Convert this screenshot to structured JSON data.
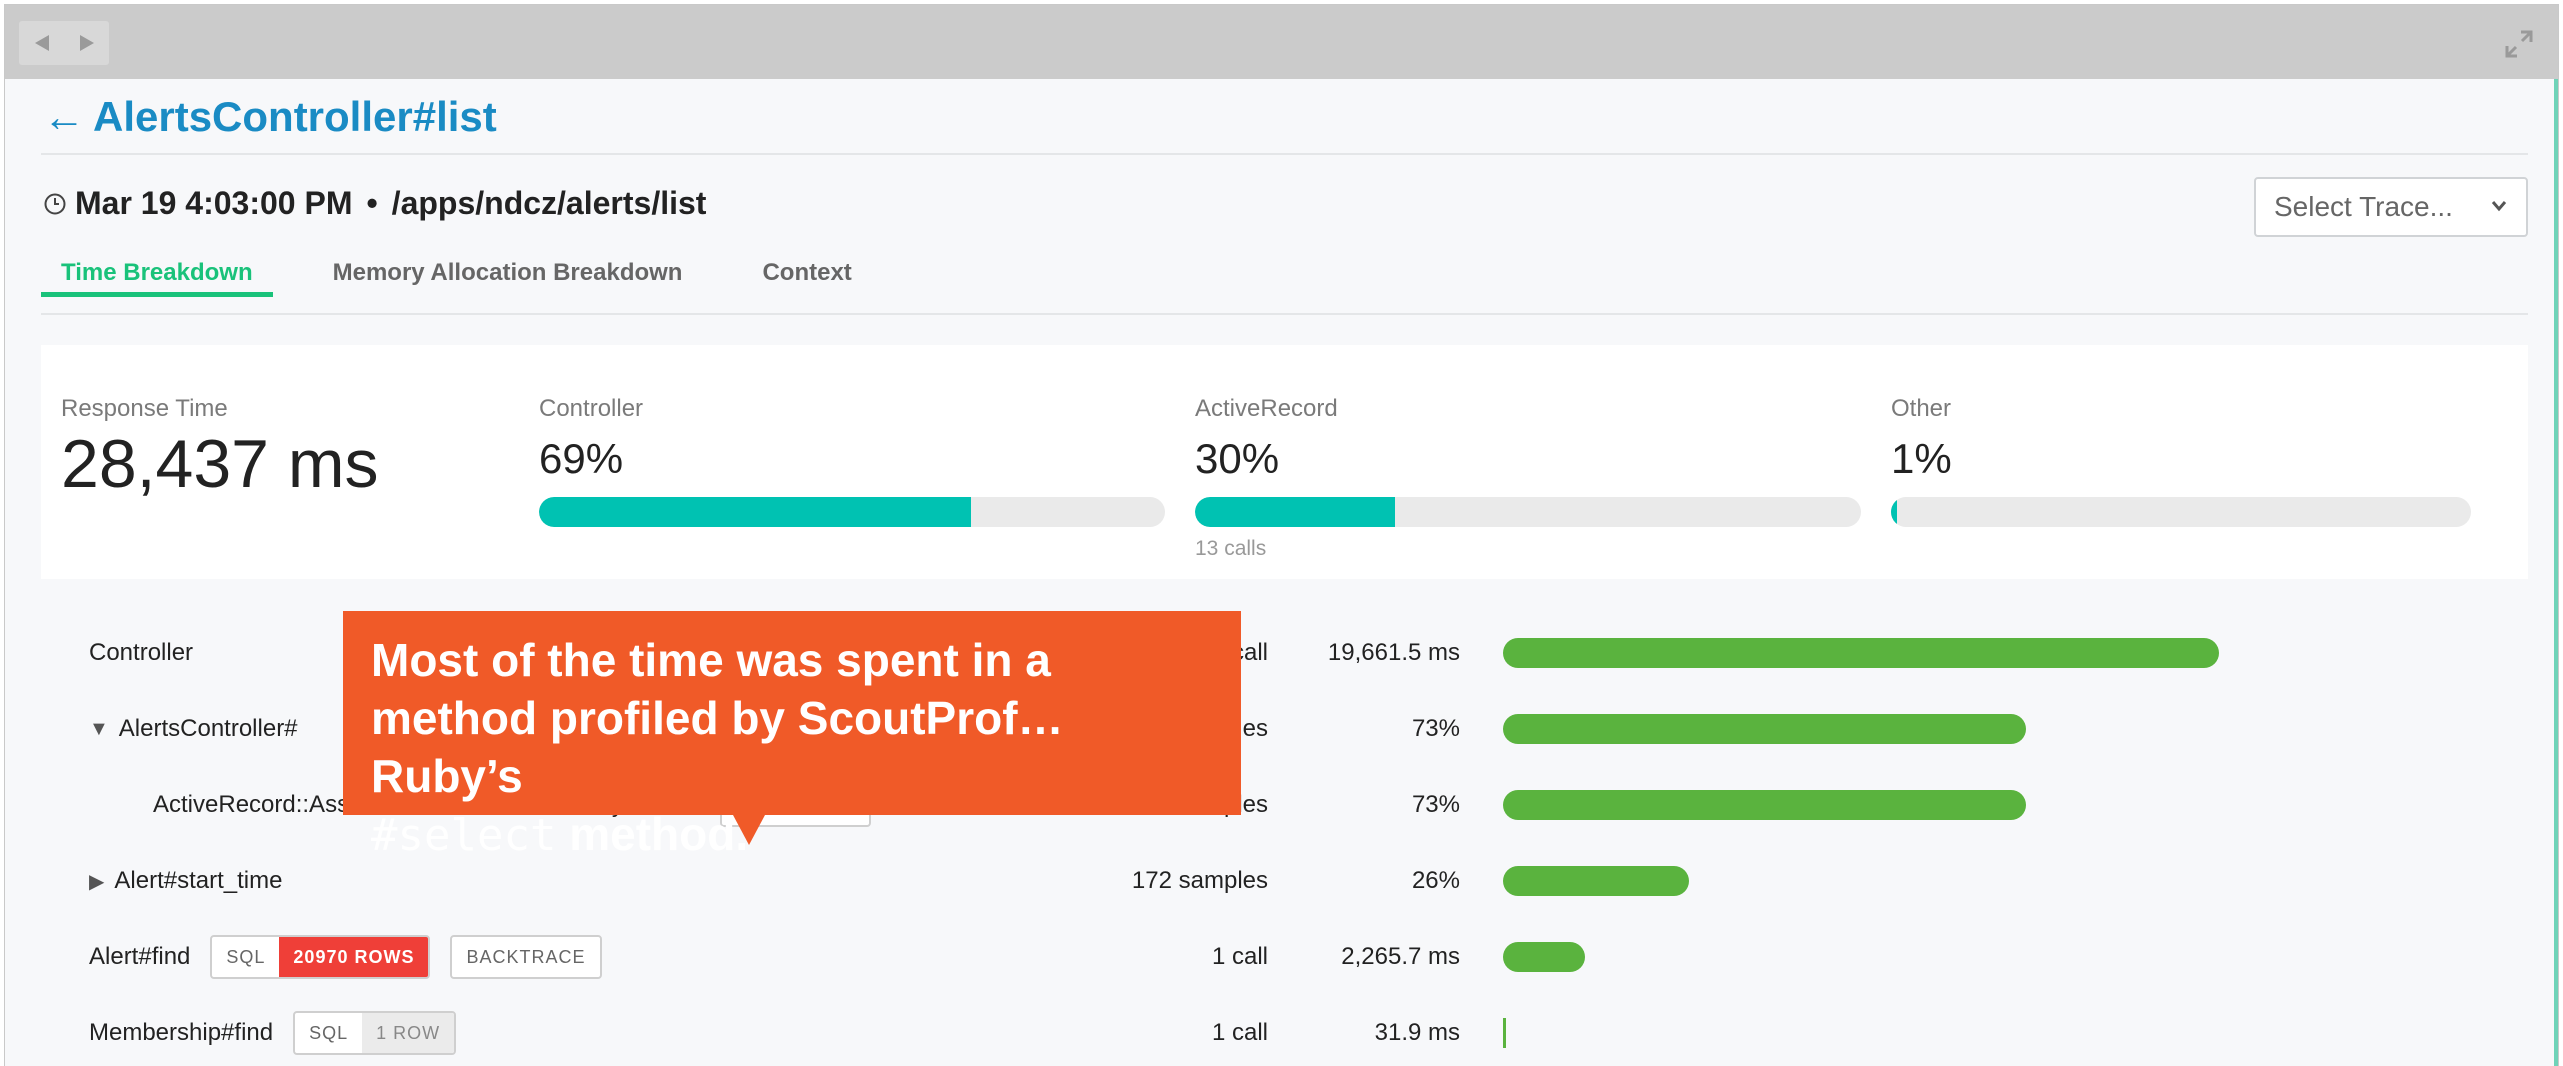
{
  "header": {
    "back_arrow": "←",
    "title": "AlertsController#list",
    "time": "Mar 19 4:03:00 PM",
    "separator": "•",
    "path": "/apps/ndcz/alerts/list",
    "select_trace_placeholder": "Select Trace..."
  },
  "tabs": [
    {
      "label": "Time Breakdown",
      "active": true
    },
    {
      "label": "Memory Allocation Breakdown",
      "active": false
    },
    {
      "label": "Context",
      "active": false
    }
  ],
  "summary": {
    "response_label": "Response Time",
    "response_value": "28,437 ms",
    "metrics": [
      {
        "label": "Controller",
        "value": "69%",
        "fraction": 0.69,
        "sub": ""
      },
      {
        "label": "ActiveRecord",
        "value": "30%",
        "fraction": 0.3,
        "sub": "13 calls"
      },
      {
        "label": "Other",
        "value": "1%",
        "fraction": 0.01,
        "sub": ""
      }
    ]
  },
  "rows": [
    {
      "name": "Controller",
      "expander": "",
      "count": "1 call",
      "metric": "19,661.5 ms",
      "bar_fraction": 1.0
    },
    {
      "name": "AlertsController#",
      "expander": "▼",
      "count": "mples",
      "metric": "73%",
      "bar_fraction": 0.73
    },
    {
      "name": "ActiveRecord::Associations::CollectionProxy#select",
      "expander": "",
      "count": "479 samples",
      "metric": "73%",
      "bar_fraction": 0.73,
      "backtrace": "BACKTRACE"
    },
    {
      "name": "Alert#start_time",
      "expander": "▶",
      "count": "172 samples",
      "metric": "26%",
      "bar_fraction": 0.26
    },
    {
      "name": "Alert#find",
      "expander": "",
      "count": "1 call",
      "metric": "2,265.7 ms",
      "bar_fraction": 0.115,
      "sql": "SQL",
      "sql_rows": "20970 ROWS",
      "backtrace": "BACKTRACE"
    },
    {
      "name": "Membership#find",
      "expander": "",
      "count": "1 call",
      "metric": "31.9 ms",
      "bar_fraction": 0.002,
      "sql": "SQL",
      "sql_rows": "1 ROW"
    }
  ],
  "callout": {
    "line1": "Most of the time was spent in a",
    "line2": "method profiled by ScoutProf…Ruby’s",
    "code": "#select",
    "line3_rest": " method."
  },
  "colors": {
    "accent_blue": "#1a8bc4",
    "tab_green": "#19c27a",
    "teal": "#00c2b2",
    "bar_green": "#5ab33e",
    "callout_orange": "#f05a28",
    "rows_red": "#ef3f38"
  }
}
